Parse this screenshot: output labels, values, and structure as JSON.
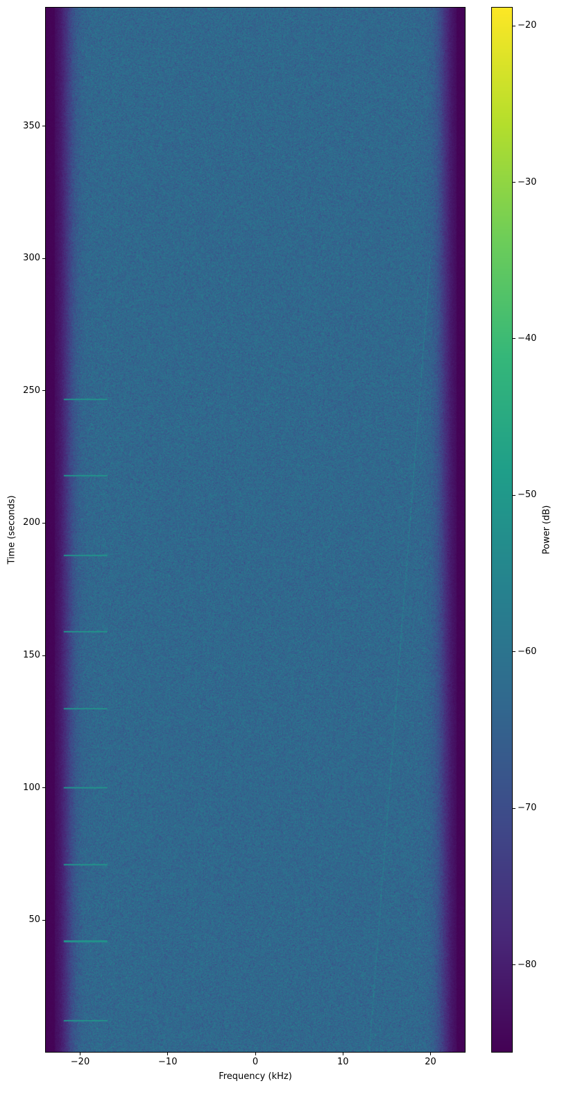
{
  "chart_data": {
    "type": "heatmap",
    "subtype": "spectrogram",
    "title": "",
    "xlabel": "Frequency (kHz)",
    "ylabel": "Time (seconds)",
    "xlim": [
      -24,
      24
    ],
    "ylim": [
      0,
      395
    ],
    "xticks": [
      -20,
      -10,
      0,
      10,
      20
    ],
    "xtick_labels": [
      "−20",
      "−10",
      "0",
      "10",
      "20"
    ],
    "yticks": [
      50,
      100,
      150,
      200,
      250,
      300,
      350
    ],
    "ytick_labels": [
      "50",
      "100",
      "150",
      "200",
      "250",
      "300",
      "350"
    ],
    "colormap": "viridis",
    "colorbar": {
      "label": "Power (dB)",
      "range": [
        -85.6,
        -18.8
      ],
      "ticks": [
        -20,
        -30,
        -40,
        -50,
        -60,
        -70,
        -80
      ],
      "tick_labels": [
        "−20",
        "−30",
        "−40",
        "−50",
        "−60",
        "−70",
        "−80"
      ]
    },
    "background_power_db": -63,
    "passband_edge_khz": 21.5,
    "out_of_band_power_db": -85,
    "periodic_tones": {
      "times_s": [
        12,
        42,
        71,
        100,
        130,
        159,
        188,
        218,
        247
      ],
      "freq_range_khz": [
        -22,
        -17
      ],
      "power_db": -52
    },
    "grid": false
  }
}
